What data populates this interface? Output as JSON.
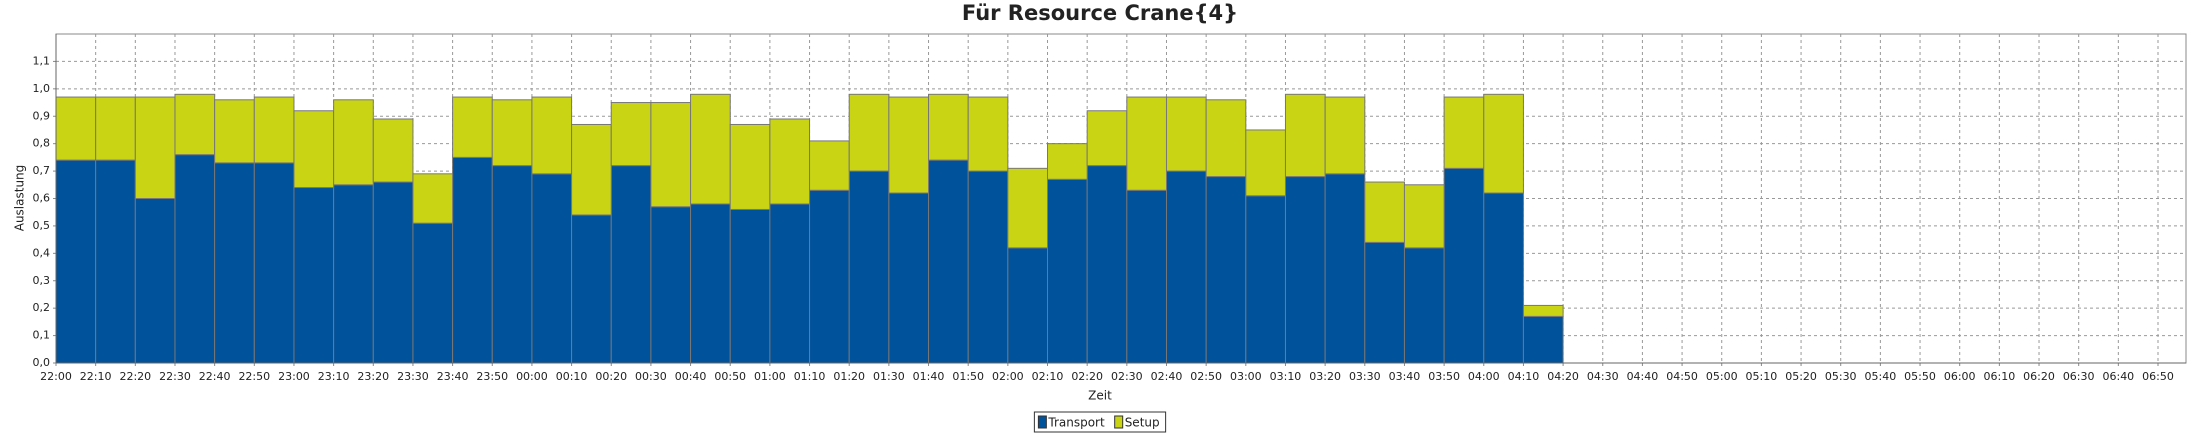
{
  "chart_data": {
    "type": "stacked_bar",
    "title": "Für Resource Crane{4}",
    "x_label": "Zeit",
    "y_label": "Auslastung",
    "categories": [
      "22:00",
      "22:10",
      "22:20",
      "22:30",
      "22:40",
      "22:50",
      "23:00",
      "23:10",
      "23:20",
      "23:30",
      "23:40",
      "23:50",
      "00:00",
      "00:10",
      "00:20",
      "00:30",
      "00:40",
      "00:50",
      "01:00",
      "01:10",
      "01:20",
      "01:30",
      "01:40",
      "01:50",
      "02:00",
      "02:10",
      "02:20",
      "02:30",
      "02:40",
      "02:50",
      "03:00",
      "03:10",
      "03:20",
      "03:30",
      "03:40",
      "03:50",
      "04:00",
      "04:10",
      "04:20",
      "04:30",
      "04:40",
      "04:50",
      "05:00",
      "05:10",
      "05:20",
      "05:30",
      "05:40",
      "05:50",
      "06:00",
      "06:10",
      "06:20",
      "06:30",
      "06:40",
      "06:50"
    ],
    "series": [
      {
        "name": "Transport",
        "color": "#00529b",
        "values": [
          0.74,
          0.74,
          0.6,
          0.76,
          0.73,
          0.73,
          0.64,
          0.65,
          0.66,
          0.51,
          0.75,
          0.72,
          0.69,
          0.54,
          0.72,
          0.57,
          0.58,
          0.56,
          0.58,
          0.63,
          0.7,
          0.62,
          0.74,
          0.7,
          0.42,
          0.67,
          0.72,
          0.63,
          0.7,
          0.68,
          0.61,
          0.68,
          0.69,
          0.44,
          0.42,
          0.71,
          0.62,
          0.17,
          null,
          null,
          null,
          null,
          null,
          null,
          null,
          null,
          null,
          null,
          null,
          null,
          null,
          null,
          null,
          null
        ]
      },
      {
        "name": "Setup",
        "color": "#c8d414",
        "values": [
          0.23,
          0.23,
          0.37,
          0.22,
          0.23,
          0.24,
          0.28,
          0.31,
          0.23,
          0.18,
          0.22,
          0.24,
          0.28,
          0.33,
          0.23,
          0.38,
          0.4,
          0.31,
          0.31,
          0.18,
          0.28,
          0.35,
          0.24,
          0.27,
          0.29,
          0.13,
          0.2,
          0.34,
          0.27,
          0.28,
          0.24,
          0.3,
          0.28,
          0.22,
          0.23,
          0.26,
          0.36,
          0.04,
          null,
          null,
          null,
          null,
          null,
          null,
          null,
          null,
          null,
          null,
          null,
          null,
          null,
          null,
          null,
          null
        ]
      }
    ],
    "ylim": [
      0,
      1.2
    ],
    "yticks": [
      {
        "value": 0,
        "label": "0,0"
      },
      {
        "value": 0.1,
        "label": "0,1"
      },
      {
        "value": 0.2,
        "label": "0,2"
      },
      {
        "value": 0.3,
        "label": "0,3"
      },
      {
        "value": 0.4,
        "label": "0,4"
      },
      {
        "value": 0.5,
        "label": "0,5"
      },
      {
        "value": 0.6,
        "label": "0,6"
      },
      {
        "value": 0.7,
        "label": "0,7"
      },
      {
        "value": 0.8,
        "label": "0,8"
      },
      {
        "value": 0.9,
        "label": "0,9"
      },
      {
        "value": 1.0,
        "label": "1,0"
      },
      {
        "value": 1.1,
        "label": "1,1"
      }
    ],
    "grid": true,
    "legend": "bottom"
  }
}
